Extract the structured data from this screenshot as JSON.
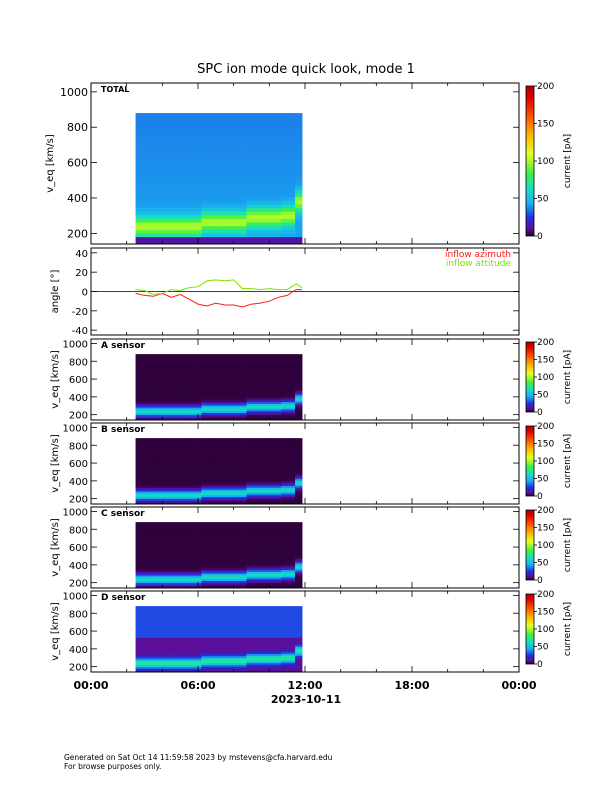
{
  "title": "SPC ion mode quick look, mode 1",
  "footer": {
    "line1": "Generated on Sat Oct 14 11:59:58 2023 by mstevens@cfa.harvard.edu",
    "line2": "For browse purposes only."
  },
  "colors": {
    "inflow_azimuth": "#ff1a1a",
    "inflow_attitude": "#7fe000"
  },
  "chart_data": [
    {
      "type": "heatmap",
      "panel_label": "TOTAL",
      "ylabel": "v_eq [km/s]",
      "ylim": [
        140,
        1050
      ],
      "yticks": [
        200,
        400,
        600,
        800,
        1000
      ],
      "colorbar": {
        "label": "current [pA]",
        "range": [
          0,
          200
        ],
        "ticks": [
          0,
          50,
          100,
          150,
          200
        ]
      },
      "data_time_range": [
        "02:30",
        "11:50"
      ],
      "peak_speed_km_s": [
        {
          "t": "02:30",
          "v": 240
        },
        {
          "t": "06:00",
          "v": 240
        },
        {
          "t": "06:10",
          "v": 265
        },
        {
          "t": "08:30",
          "v": 265
        },
        {
          "t": "08:40",
          "v": 290
        },
        {
          "t": "10:40",
          "v": 300
        },
        {
          "t": "11:30",
          "v": 380
        },
        {
          "t": "11:50",
          "v": 430
        }
      ]
    },
    {
      "type": "line",
      "ylabel": "angle [°]",
      "ylim": [
        -45,
        45
      ],
      "yticks": [
        -40,
        -20,
        0,
        20,
        40
      ],
      "series": [
        {
          "name": "inflow azimuth",
          "color": "#ff1a1a",
          "x": [
            "02:30",
            "03:00",
            "03:30",
            "04:00",
            "04:30",
            "05:00",
            "05:30",
            "06:00",
            "06:30",
            "07:00",
            "07:30",
            "08:00",
            "08:30",
            "09:00",
            "09:30",
            "10:00",
            "10:30",
            "11:00",
            "11:30",
            "11:50"
          ],
          "y": [
            -2,
            -4,
            -5,
            -2,
            -6,
            -3,
            -8,
            -13,
            -15,
            -12,
            -14,
            -14,
            -16,
            -13,
            -12,
            -10,
            -6,
            -4,
            2,
            2
          ]
        },
        {
          "name": "inflow attitude",
          "color": "#7fe000",
          "x": [
            "02:30",
            "03:00",
            "03:30",
            "04:00",
            "04:30",
            "05:00",
            "05:30",
            "06:00",
            "06:30",
            "07:00",
            "07:30",
            "08:00",
            "08:30",
            "09:00",
            "09:30",
            "10:00",
            "10:30",
            "11:00",
            "11:30",
            "11:50"
          ],
          "y": [
            2,
            1,
            -3,
            -2,
            2,
            1,
            4,
            5,
            11,
            12,
            11,
            12,
            3,
            3,
            2,
            3,
            2,
            2,
            8,
            4
          ]
        }
      ]
    },
    {
      "type": "heatmap",
      "panel_label": "A sensor",
      "ylabel": "v_eq [km/s]",
      "ylim": [
        140,
        1050
      ],
      "yticks": [
        200,
        400,
        600,
        800,
        1000
      ],
      "colorbar": {
        "label": "current [pA]",
        "range": [
          0,
          200
        ],
        "ticks": [
          0,
          50,
          100,
          150,
          200
        ]
      },
      "data_time_range": [
        "02:30",
        "11:50"
      ]
    },
    {
      "type": "heatmap",
      "panel_label": "B sensor",
      "ylabel": "v_eq [km/s]",
      "ylim": [
        140,
        1050
      ],
      "yticks": [
        200,
        400,
        600,
        800,
        1000
      ],
      "colorbar": {
        "label": "current [pA]",
        "range": [
          0,
          200
        ],
        "ticks": [
          0,
          50,
          100,
          150,
          200
        ]
      },
      "data_time_range": [
        "02:30",
        "11:50"
      ]
    },
    {
      "type": "heatmap",
      "panel_label": "C sensor",
      "ylabel": "v_eq [km/s]",
      "ylim": [
        140,
        1050
      ],
      "yticks": [
        200,
        400,
        600,
        800,
        1000
      ],
      "colorbar": {
        "label": "current [pA]",
        "range": [
          0,
          200
        ],
        "ticks": [
          0,
          50,
          100,
          150,
          200
        ]
      },
      "data_time_range": [
        "02:30",
        "11:50"
      ]
    },
    {
      "type": "heatmap",
      "panel_label": "D sensor",
      "ylabel": "v_eq [km/s]",
      "ylim": [
        140,
        1050
      ],
      "yticks": [
        200,
        400,
        600,
        800,
        1000
      ],
      "colorbar": {
        "label": "current [pA]",
        "range": [
          0,
          200
        ],
        "ticks": [
          0,
          50,
          100,
          150,
          200
        ]
      },
      "data_time_range": [
        "02:30",
        "11:50"
      ]
    }
  ],
  "x_axis": {
    "ticks": [
      "00:00",
      "06:00",
      "12:00",
      "18:00",
      "00:00"
    ],
    "date_label": "2023-10-11",
    "range_hours": [
      0,
      24
    ]
  }
}
